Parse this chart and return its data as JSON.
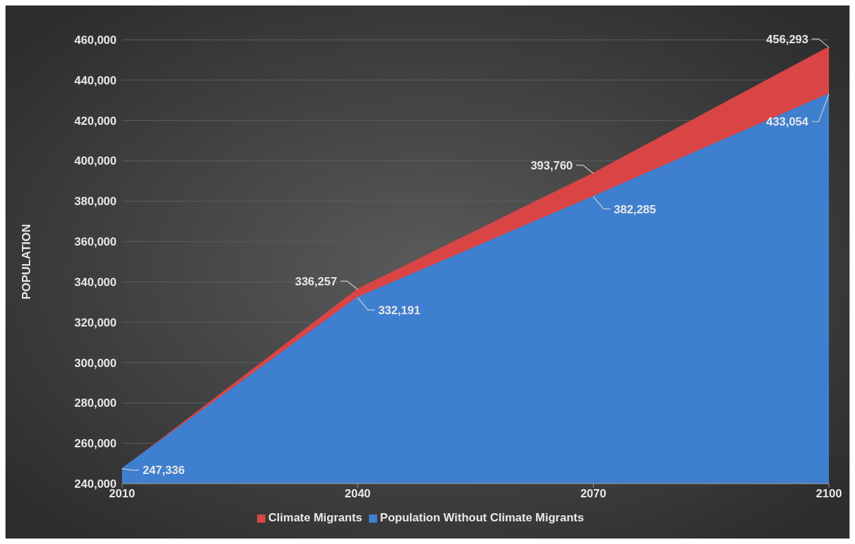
{
  "chart_data": {
    "type": "area",
    "ylabel": "POPULATION",
    "categories": [
      "2010",
      "2040",
      "2070",
      "2100"
    ],
    "series": [
      {
        "name": "Climate Migrants",
        "color": "#d94545",
        "values": [
          247000,
          336257,
          393760,
          456293
        ],
        "value_labels": [
          null,
          "336,257",
          "393,760",
          "456,293"
        ]
      },
      {
        "name": "Population Without Climate Migrants",
        "color": "#3f7fcf",
        "values": [
          247336,
          332191,
          382285,
          433054
        ],
        "value_labels": [
          "247,336",
          "332,191",
          "382,285",
          "433,054"
        ]
      }
    ],
    "ylim": [
      240000,
      460000
    ],
    "yticks": [
      {
        "value": 240000,
        "label": "240,000"
      },
      {
        "value": 260000,
        "label": "260,000"
      },
      {
        "value": 280000,
        "label": "280,000"
      },
      {
        "value": 300000,
        "label": "300,000"
      },
      {
        "value": 320000,
        "label": "320,000"
      },
      {
        "value": 340000,
        "label": "340,000"
      },
      {
        "value": 360000,
        "label": "360,000"
      },
      {
        "value": 380000,
        "label": "380,000"
      },
      {
        "value": 400000,
        "label": "400,000"
      },
      {
        "value": 420000,
        "label": "420,000"
      },
      {
        "value": 440000,
        "label": "440,000"
      },
      {
        "value": 460000,
        "label": "460,000"
      }
    ],
    "grid": "y",
    "legend": "bottom"
  }
}
